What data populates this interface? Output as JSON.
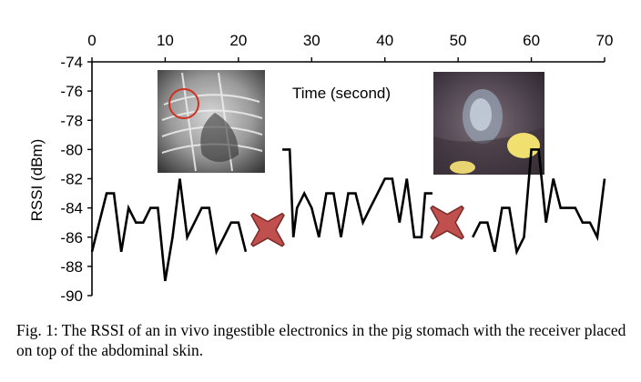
{
  "chart_data": {
    "type": "line",
    "xlabel": "Time (second)",
    "ylabel": "RSSI (dBm)",
    "xlim": [
      0,
      70
    ],
    "ylim": [
      -90,
      -74
    ],
    "x_ticks": [
      "0",
      "10",
      "20",
      "30",
      "40",
      "50",
      "60",
      "70"
    ],
    "y_ticks": [
      "-74",
      "-76",
      "-78",
      "-80",
      "-82",
      "-84",
      "-86",
      "-88",
      "-90"
    ],
    "x_axis_position": "top",
    "grid": false,
    "series": [
      {
        "segments": [
          [
            [
              0,
              -87
            ],
            [
              1,
              -85
            ],
            [
              2,
              -83
            ],
            [
              3,
              -83
            ],
            [
              4,
              -87
            ],
            [
              5,
              -84
            ],
            [
              6,
              -85
            ],
            [
              7,
              -85
            ],
            [
              8,
              -84
            ],
            [
              9,
              -84
            ],
            [
              10,
              -89
            ],
            [
              11,
              -86
            ],
            [
              12,
              -82
            ],
            [
              13,
              -86
            ],
            [
              14,
              -85
            ],
            [
              15,
              -84
            ],
            [
              16,
              -84
            ],
            [
              17,
              -87
            ],
            [
              18,
              -86
            ],
            [
              19,
              -85
            ],
            [
              20,
              -85
            ],
            [
              21,
              -87
            ]
          ],
          [
            [
              26,
              -80
            ],
            [
              27,
              -80
            ],
            [
              27.5,
              -86
            ],
            [
              28,
              -84
            ],
            [
              29,
              -83
            ],
            [
              30,
              -84
            ],
            [
              31,
              -86
            ],
            [
              32,
              -83
            ],
            [
              33,
              -83
            ],
            [
              34,
              -86
            ],
            [
              35,
              -83
            ],
            [
              36,
              -83
            ],
            [
              37,
              -85
            ],
            [
              38,
              -84
            ],
            [
              39,
              -83
            ],
            [
              40,
              -82
            ],
            [
              41,
              -82
            ],
            [
              42,
              -85
            ],
            [
              43,
              -82
            ],
            [
              44,
              -86
            ],
            [
              45,
              -86
            ],
            [
              45.5,
              -83
            ],
            [
              46.5,
              -83
            ]
          ],
          [
            [
              52,
              -86
            ],
            [
              53,
              -85
            ],
            [
              54,
              -85
            ],
            [
              55,
              -87
            ],
            [
              56,
              -84
            ],
            [
              57,
              -84
            ],
            [
              58,
              -87
            ],
            [
              59,
              -86
            ],
            [
              60,
              -80
            ],
            [
              61,
              -80
            ],
            [
              62,
              -85
            ],
            [
              63,
              -82
            ],
            [
              64,
              -84
            ],
            [
              65,
              -84
            ],
            [
              66,
              -84
            ],
            [
              67,
              -85
            ],
            [
              68,
              -85
            ],
            [
              69,
              -86
            ],
            [
              70,
              -82
            ]
          ]
        ],
        "color": "#000000"
      }
    ],
    "gap_markers": [
      {
        "x": 24,
        "y": -85.5,
        "symbol": "cross",
        "color": "#c0504d"
      },
      {
        "x": 48.5,
        "y": -85,
        "symbol": "cross",
        "color": "#c0504d"
      }
    ],
    "insets": [
      {
        "name": "x-ray-inset",
        "description_icon": "x-ray-image",
        "highlight_color": "#d03020"
      },
      {
        "name": "endoscope-inset",
        "description_icon": "endoscopic-stomach-image"
      }
    ]
  },
  "caption": "Fig. 1: The RSSI of an in vivo ingestible electronics in the pig stomach with the receiver placed on top of the abdominal skin."
}
